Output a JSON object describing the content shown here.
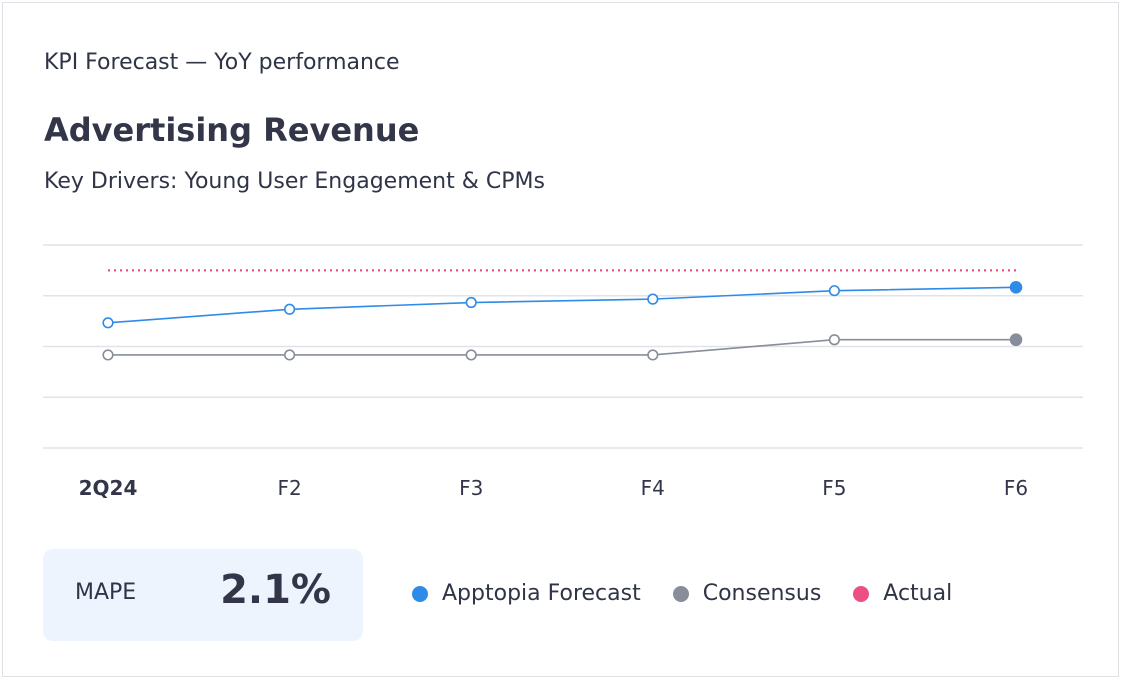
{
  "header": {
    "eyebrow": "KPI Forecast — YoY performance",
    "title": "Advertising Revenue",
    "subtitle": "Key Drivers: Young User Engagement & CPMs"
  },
  "chart_data": {
    "type": "line",
    "categories": [
      "2Q24",
      "F2",
      "F3",
      "F4",
      "F5",
      "F6"
    ],
    "bold_category": "2Q24",
    "ylim": [
      0,
      12
    ],
    "gridlines": [
      3,
      6,
      9,
      12
    ],
    "series": [
      {
        "name": "Apptopia Forecast",
        "color": "#2f8be8",
        "values": [
          7.4,
          8.2,
          8.6,
          8.8,
          9.3,
          9.5
        ]
      },
      {
        "name": "Consensus",
        "color": "#878d99",
        "values": [
          5.5,
          5.5,
          5.5,
          5.5,
          6.4,
          6.4
        ]
      },
      {
        "name": "Actual",
        "color": "#ec4f86",
        "style": "dotted",
        "values": [
          10.5,
          10.5,
          10.5,
          10.5,
          10.5,
          10.5
        ]
      }
    ]
  },
  "mape": {
    "label": "MAPE",
    "value": "2.1%"
  },
  "legend": [
    {
      "label": "Apptopia Forecast",
      "color": "#2f8be8"
    },
    {
      "label": "Consensus",
      "color": "#878d99"
    },
    {
      "label": "Actual",
      "color": "#ec4f86"
    }
  ]
}
